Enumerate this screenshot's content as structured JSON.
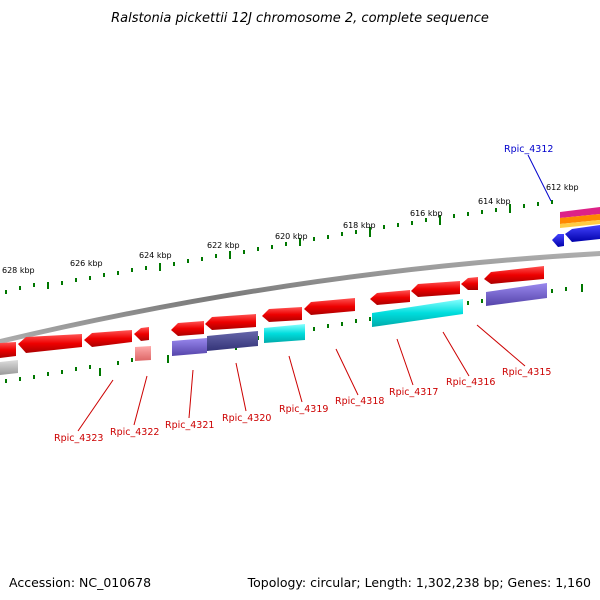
{
  "title": "Ralstonia pickettii 12J chromosome 2, complete sequence",
  "footer": {
    "accession": "Accession: NC_010678",
    "summary": "Topology: circular; Length: 1,302,238 bp; Genes: 1,160"
  },
  "colors": {
    "forward_gene": "#ee0000",
    "reverse_gene": "#ee0000",
    "label_red": "#cc0000",
    "label_blue": "#0000cc",
    "tick_green": "#007700",
    "backbone": "#8a8a8a",
    "cyan": "#00dddd",
    "slate": "#7766cc",
    "navy": "#444488"
  },
  "ruler_labels": [
    "628 kbp",
    "626 kbp",
    "624 kbp",
    "622 kbp",
    "620 kbp",
    "618 kbp",
    "616 kbp",
    "614 kbp",
    "612 kbp"
  ],
  "gene_labels": [
    {
      "id": "Rpic_4323",
      "text": "Rpic_4323"
    },
    {
      "id": "Rpic_4322",
      "text": "Rpic_4322"
    },
    {
      "id": "Rpic_4321",
      "text": "Rpic_4321"
    },
    {
      "id": "Rpic_4320",
      "text": "Rpic_4320"
    },
    {
      "id": "Rpic_4319",
      "text": "Rpic_4319"
    },
    {
      "id": "Rpic_4318",
      "text": "Rpic_4318"
    },
    {
      "id": "Rpic_4317",
      "text": "Rpic_4317"
    },
    {
      "id": "Rpic_4316",
      "text": "Rpic_4316"
    },
    {
      "id": "Rpic_4315",
      "text": "Rpic_4315"
    },
    {
      "id": "Rpic_4312",
      "text": "Rpic_4312"
    }
  ]
}
